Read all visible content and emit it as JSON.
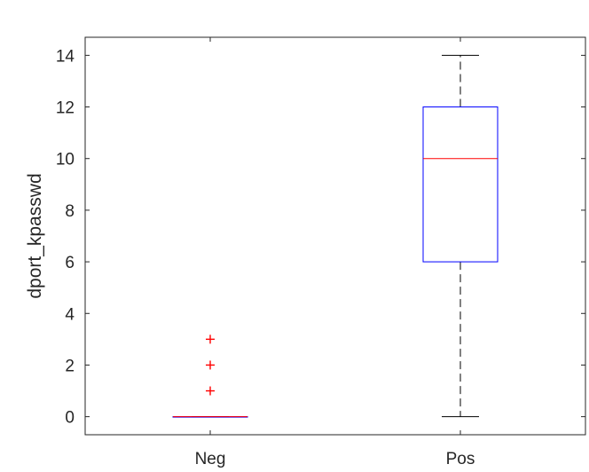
{
  "chart_data": {
    "type": "box",
    "title": "",
    "xlabel": "",
    "ylabel": "dport_kpasswd",
    "categories": [
      "Neg",
      "Pos"
    ],
    "ylim": [
      -0.7,
      14.7
    ],
    "yticks": [
      0,
      2,
      4,
      6,
      8,
      10,
      12,
      14
    ],
    "grid": false,
    "legend": "none",
    "boxes": [
      {
        "category": "Neg",
        "whisker_low": 0,
        "q1": 0,
        "median": 0,
        "q3": 0,
        "whisker_high": 0,
        "outliers": [
          1,
          2,
          3
        ]
      },
      {
        "category": "Pos",
        "whisker_low": 0,
        "q1": 6,
        "median": 10,
        "q3": 12,
        "whisker_high": 14,
        "outliers": []
      }
    ],
    "colors": {
      "box": "#0000ff",
      "median": "#ff0000",
      "whisker": "#000000",
      "outlier": "#ff0000",
      "axis": "#262626"
    }
  }
}
